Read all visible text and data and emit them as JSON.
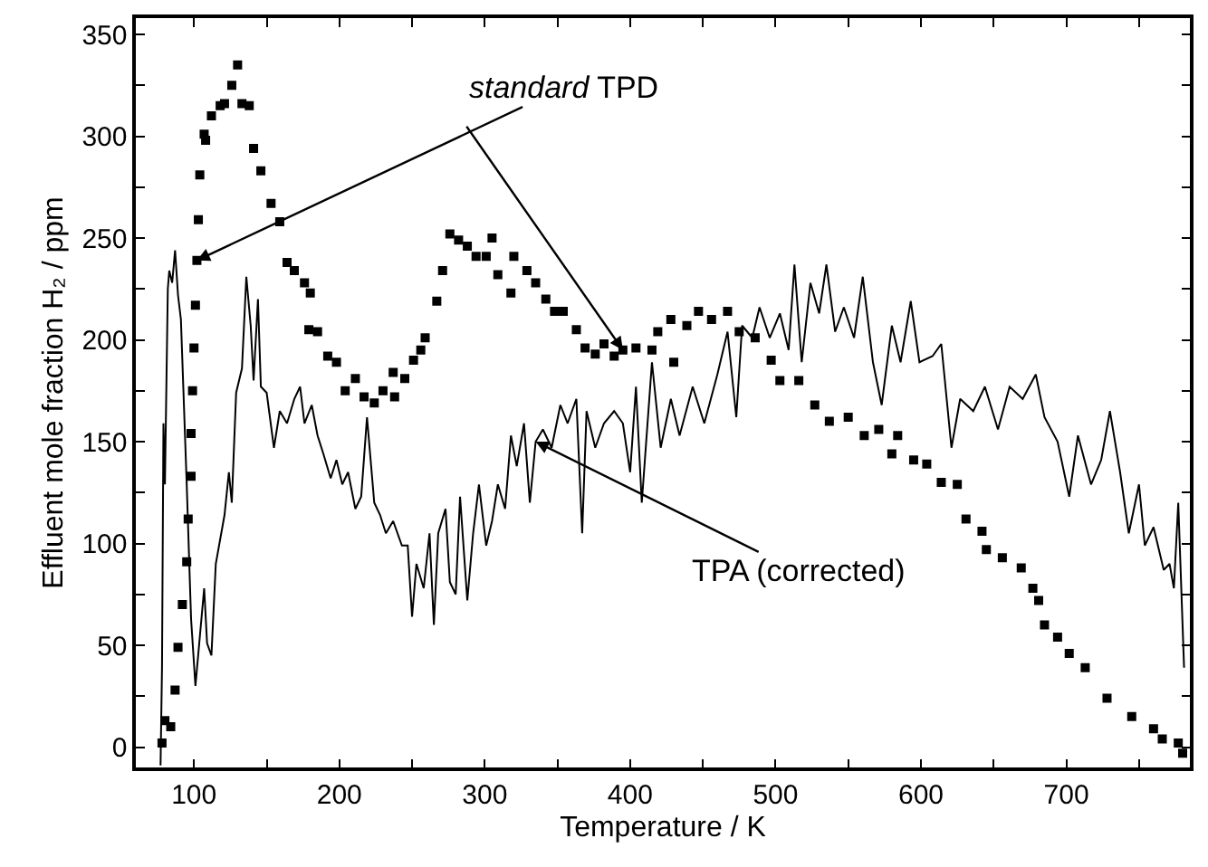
{
  "chart_data": {
    "type": "line",
    "xlabel": "Temperature / K",
    "ylabel": "Effluent mole fraction H₂ / ppm",
    "xlim": [
      60,
      785
    ],
    "ylim": [
      -10,
      358
    ],
    "xticks": [
      100,
      {
        "value": 150,
        "label": null
      },
      200,
      {
        "value": 250,
        "label": null
      },
      300,
      {
        "value": 350,
        "label": null
      },
      400,
      {
        "value": 450,
        "label": null
      },
      500,
      {
        "value": 550,
        "label": null
      },
      600,
      {
        "value": 650,
        "label": null
      },
      700,
      {
        "value": 750,
        "label": null
      }
    ],
    "yticks": [
      0,
      {
        "value": 25,
        "label": null
      },
      50,
      {
        "value": 75,
        "label": null
      },
      100,
      {
        "value": 125,
        "label": null
      },
      150,
      {
        "value": 175,
        "label": null
      },
      200,
      {
        "value": 225,
        "label": null
      },
      250,
      {
        "value": 275,
        "label": null
      },
      300,
      {
        "value": 325,
        "label": null
      },
      350
    ],
    "series": [
      {
        "type": "scatter",
        "marker": "square",
        "color": "#000000",
        "x": [
          78,
          80,
          84,
          87,
          89,
          92,
          95,
          96,
          98,
          98,
          99,
          100,
          101,
          102,
          103,
          104,
          107,
          108,
          112,
          118,
          121,
          126,
          130,
          133,
          138,
          141,
          146,
          153,
          159,
          164,
          169,
          176,
          180,
          179,
          185,
          192,
          198,
          204,
          211,
          217,
          224,
          230,
          237,
          238,
          245,
          251,
          256,
          259,
          267,
          271,
          276,
          282,
          288,
          294,
          301,
          305,
          309,
          318,
          320,
          329,
          335,
          342,
          348,
          354,
          363,
          369,
          376,
          382,
          389,
          395,
          404,
          415,
          419,
          430,
          428,
          439,
          447,
          456,
          467,
          475,
          486,
          497,
          503,
          516,
          527,
          537,
          550,
          561,
          571,
          580,
          584,
          595,
          604,
          614,
          625,
          631,
          642,
          645,
          656,
          669,
          677,
          681,
          685,
          694,
          702,
          713,
          728,
          745,
          760,
          766,
          777,
          780
        ],
        "values": [
          2,
          13,
          10,
          28,
          49,
          70,
          91,
          112,
          133,
          154,
          175,
          196,
          217,
          239,
          259,
          281,
          301,
          298,
          310,
          315,
          316,
          325,
          335,
          316,
          315,
          294,
          283,
          267,
          258,
          238,
          234,
          228,
          223,
          205,
          204,
          192,
          189,
          175,
          181,
          172,
          169,
          175,
          184,
          172,
          181,
          190,
          195,
          201,
          219,
          234,
          252,
          249,
          246,
          241,
          241,
          250,
          232,
          223,
          241,
          234,
          228,
          220,
          214,
          214,
          205,
          196,
          193,
          198,
          192,
          195,
          196,
          195,
          204,
          189,
          210,
          207,
          214,
          210,
          214,
          204,
          201,
          190,
          180,
          180,
          168,
          160,
          162,
          153,
          156,
          144,
          153,
          141,
          139,
          130,
          129,
          112,
          106,
          97,
          93,
          88,
          78,
          72,
          60,
          54,
          46,
          39,
          24,
          15,
          9,
          4,
          2,
          -3
        ]
      },
      {
        "marker": "none",
        "color": "#000000",
        "line_style": "solid",
        "x": [
          77,
          78,
          79,
          80,
          82,
          83,
          85,
          87,
          89,
          91,
          95,
          98,
          101,
          104,
          107,
          109,
          112,
          115,
          121,
          124,
          126,
          129,
          133,
          136,
          139,
          141,
          144,
          146,
          150,
          155,
          159,
          164,
          169,
          173,
          176,
          181,
          185,
          189,
          194,
          198,
          202,
          206,
          211,
          215,
          219,
          224,
          228,
          232,
          237,
          243,
          247,
          250,
          253,
          258,
          262,
          265,
          268,
          273,
          276,
          280,
          283,
          288,
          292,
          296,
          301,
          305,
          309,
          314,
          318,
          322,
          327,
          331,
          335,
          340,
          346,
          352,
          357,
          363,
          367,
          370,
          376,
          382,
          389,
          395,
          400,
          404,
          408,
          415,
          421,
          428,
          434,
          443,
          451,
          460,
          467,
          473,
          477,
          484,
          489,
          496,
          503,
          509,
          513,
          518,
          524,
          530,
          535,
          541,
          547,
          554,
          560,
          567,
          573,
          580,
          586,
          593,
          599,
          608,
          614,
          621,
          627,
          636,
          644,
          653,
          661,
          670,
          679,
          685,
          694,
          702,
          708,
          717,
          724,
          730,
          737,
          743,
          750,
          754,
          760,
          767,
          771,
          774,
          777,
          781
        ],
        "values": [
          -9,
          39,
          159,
          129,
          225,
          234,
          228,
          244,
          222,
          210,
          129,
          63,
          30,
          54,
          78,
          51,
          45,
          90,
          114,
          135,
          120,
          174,
          186,
          231,
          207,
          180,
          220,
          177,
          174,
          147,
          165,
          159,
          171,
          177,
          159,
          168,
          153,
          144,
          132,
          141,
          129,
          135,
          117,
          123,
          162,
          120,
          114,
          105,
          111,
          99,
          99,
          64,
          90,
          78,
          105,
          60,
          105,
          117,
          81,
          75,
          123,
          72,
          105,
          129,
          99,
          111,
          129,
          117,
          153,
          138,
          159,
          120,
          150,
          156,
          147,
          168,
          159,
          171,
          105,
          165,
          147,
          159,
          165,
          159,
          135,
          177,
          120,
          189,
          147,
          171,
          153,
          177,
          159,
          183,
          204,
          162,
          207,
          201,
          216,
          201,
          213,
          195,
          237,
          189,
          228,
          213,
          237,
          204,
          216,
          201,
          231,
          189,
          168,
          207,
          189,
          219,
          189,
          192,
          198,
          147,
          171,
          165,
          177,
          156,
          177,
          171,
          183,
          162,
          150,
          123,
          153,
          129,
          141,
          165,
          135,
          105,
          129,
          99,
          108,
          87,
          90,
          78,
          120,
          39
        ]
      }
    ],
    "annotations": [
      {
        "text": "standard TPD",
        "x": 102,
        "y": 239
      },
      {
        "text": "TPA (corrected)",
        "x": 335,
        "y": 150
      }
    ]
  }
}
